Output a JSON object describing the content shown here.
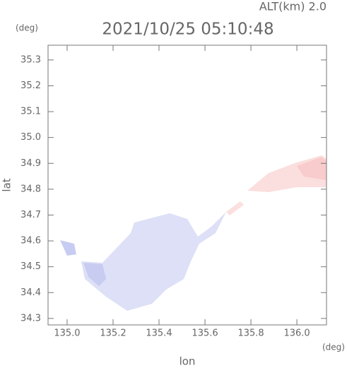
{
  "chart_data": {
    "type": "map",
    "title": "2021/10/25 05:10:48",
    "annotation": "ALT(km) 2.0",
    "x_label": "lon",
    "y_label": "lat",
    "x_unit": "(deg)",
    "y_unit": "(deg)",
    "xlim": [
      134.917,
      136.129
    ],
    "ylim": [
      34.275,
      35.357
    ],
    "xticks": [
      {
        "value": 135.0,
        "label": "135.0"
      },
      135.2,
      135.4,
      135.6,
      135.8,
      {
        "value": 136.0,
        "label": "136.0"
      }
    ],
    "yticks": [
      34.3,
      34.4,
      34.5,
      34.6,
      34.7,
      34.8,
      34.9,
      {
        "value": 35.0,
        "label": "35.0"
      },
      35.1,
      35.2,
      35.3
    ]
  }
}
